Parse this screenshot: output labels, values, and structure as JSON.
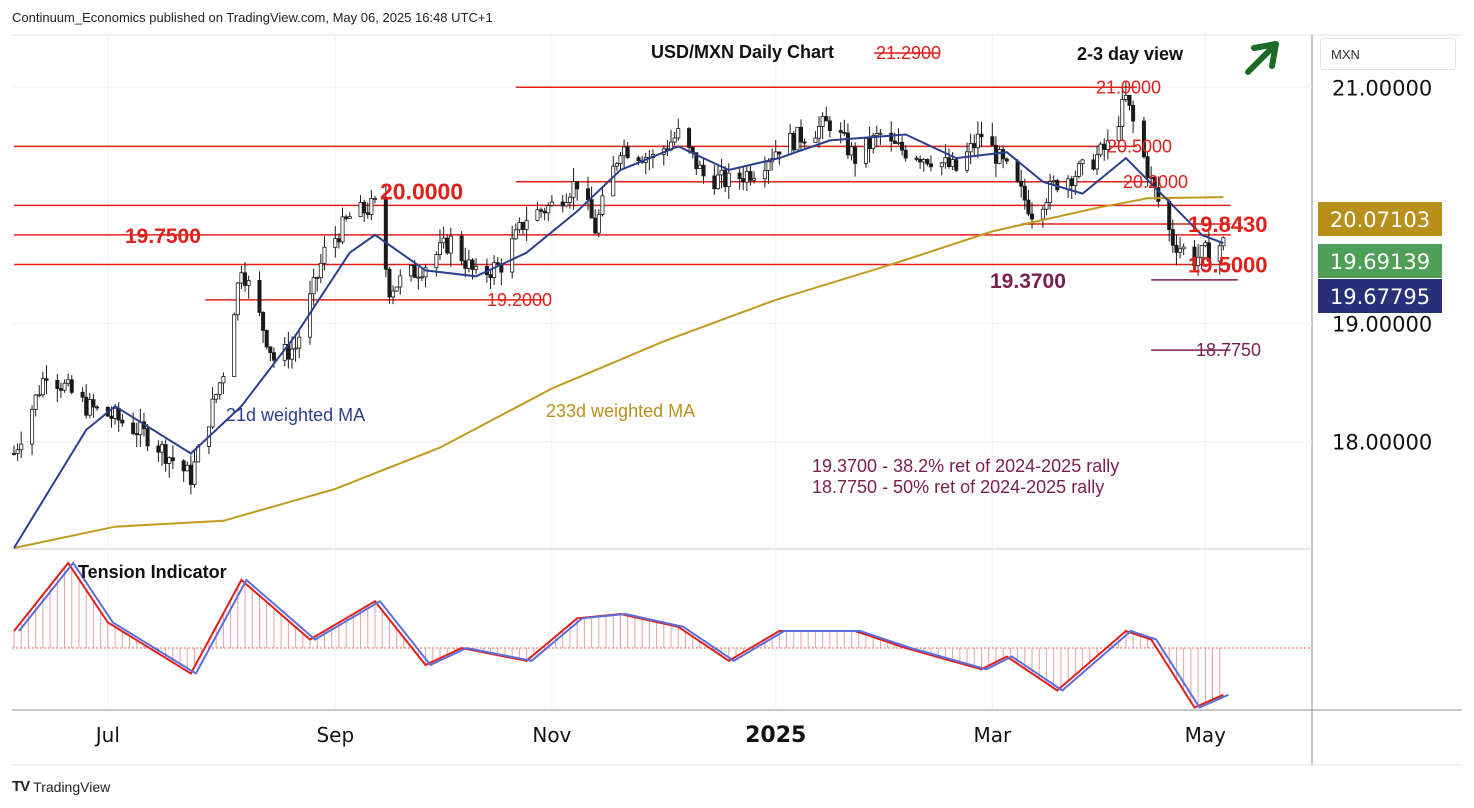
{
  "header": {
    "publisher_line": "Continuum_Economics published on TradingView.com, May 06, 2025 16:48 UTC+1"
  },
  "price_axis": {
    "unit": "MXN",
    "tick_labels": [
      "21.00000",
      "19.00000",
      "18.00000"
    ]
  },
  "badges": [
    {
      "label": "20.07103",
      "value": 20.07103,
      "color": "#b8901c"
    },
    {
      "label": "19.69139",
      "value": 19.69139,
      "color": "#4f9f59"
    },
    {
      "label": "19.67795",
      "value": 19.67795,
      "color": "#28307a"
    }
  ],
  "time_axis": {
    "labels": [
      "Jul",
      "Sep",
      "Nov",
      "2025",
      "Mar",
      "May"
    ]
  },
  "footer": {
    "brand": "TradingView",
    "logo_text": "TV"
  },
  "colors": {
    "up": "#1a1a1a",
    "down": "#1a1a1a",
    "level": "#e0201a",
    "fib": "#7b1e4f",
    "wma21": "#2b3f8f",
    "wma233": "#c19a1f",
    "tension_fill": "#e8a0a0",
    "tension_red": "#e0201a",
    "tension_blue": "#5a6ee0",
    "arrow": "#1e6b28"
  },
  "chart_data": [
    {
      "type": "candlestick",
      "title": "USD/MXN Daily Chart",
      "subtitle": "2-3 day view",
      "outlook_icon": "arrow-up-right-icon",
      "y_axis": {
        "scale": "linear",
        "range": [
          17.1,
          21.4
        ],
        "ticks": [
          21.0,
          19.0,
          18.0
        ]
      },
      "x_range": [
        "2024-06-05",
        "2025-05-30"
      ],
      "series_labels": [
        "21d weighted MA",
        "233d weighted MA"
      ],
      "levels": [
        {
          "label": "21.2900",
          "value": 21.29
        },
        {
          "label": "21.0000",
          "value": 21.0
        },
        {
          "label": "20.5000",
          "value": 20.5
        },
        {
          "label": "20.2000",
          "value": 20.2
        },
        {
          "label": "20.0000",
          "value": 20.0
        },
        {
          "label": "19.8430",
          "value": 19.843
        },
        {
          "label": "19.7500",
          "value": 19.75
        },
        {
          "label": "19.5000",
          "value": 19.5
        },
        {
          "label": "19.3700",
          "value": 19.37
        },
        {
          "label": "19.2000",
          "value": 19.2
        },
        {
          "label": "18.7750",
          "value": 18.775
        }
      ],
      "annotations": [
        "19.3700 - 38.2% ret of 2024-2025 rally",
        "18.7750 - 50% ret of 2024-2025 rally"
      ],
      "close_points": [
        [
          "2024-06-05",
          17.9
        ],
        [
          "2024-06-14",
          18.6
        ],
        [
          "2024-06-25",
          18.3
        ],
        [
          "2024-07-03",
          18.2
        ],
        [
          "2024-07-12",
          18.05
        ],
        [
          "2024-07-24",
          17.7
        ],
        [
          "2024-08-02",
          18.6
        ],
        [
          "2024-08-07",
          19.5
        ],
        [
          "2024-08-16",
          18.7
        ],
        [
          "2024-08-22",
          18.8
        ],
        [
          "2024-08-30",
          19.6
        ],
        [
          "2024-09-06",
          19.9
        ],
        [
          "2024-09-13",
          20.0
        ],
        [
          "2024-09-17",
          19.3
        ],
        [
          "2024-09-27",
          19.5
        ],
        [
          "2024-10-04",
          19.7
        ],
        [
          "2024-10-11",
          19.4
        ],
        [
          "2024-10-18",
          19.5
        ],
        [
          "2024-10-25",
          19.9
        ],
        [
          "2024-11-01",
          20.0
        ],
        [
          "2024-11-08",
          20.2
        ],
        [
          "2024-11-13",
          19.8
        ],
        [
          "2024-11-20",
          20.5
        ],
        [
          "2024-11-29",
          20.4
        ],
        [
          "2024-12-06",
          20.6
        ],
        [
          "2024-12-13",
          20.25
        ],
        [
          "2024-12-20",
          20.2
        ],
        [
          "2024-12-27",
          20.3
        ],
        [
          "2025-01-03",
          20.5
        ],
        [
          "2025-01-10",
          20.6
        ],
        [
          "2025-01-17",
          20.7
        ],
        [
          "2025-01-24",
          20.4
        ],
        [
          "2025-01-31",
          20.6
        ],
        [
          "2025-02-03",
          20.5
        ],
        [
          "2025-02-14",
          20.4
        ],
        [
          "2025-02-21",
          20.3
        ],
        [
          "2025-02-28",
          20.6
        ],
        [
          "2025-03-07",
          20.3
        ],
        [
          "2025-03-14",
          19.95
        ],
        [
          "2025-03-21",
          20.2
        ],
        [
          "2025-03-28",
          20.3
        ],
        [
          "2025-04-04",
          20.5
        ],
        [
          "2025-04-09",
          20.9
        ],
        [
          "2025-04-16",
          20.2
        ],
        [
          "2025-04-22",
          19.7
        ],
        [
          "2025-04-28",
          19.55
        ],
        [
          "2025-05-06",
          19.68
        ]
      ],
      "wma21_points": [
        [
          "2024-06-05",
          17.1
        ],
        [
          "2024-06-25",
          18.1
        ],
        [
          "2024-07-03",
          18.3
        ],
        [
          "2024-07-24",
          17.9
        ],
        [
          "2024-08-07",
          18.3
        ],
        [
          "2024-08-22",
          18.9
        ],
        [
          "2024-09-06",
          19.6
        ],
        [
          "2024-09-13",
          19.75
        ],
        [
          "2024-09-27",
          19.45
        ],
        [
          "2024-10-11",
          19.4
        ],
        [
          "2024-10-25",
          19.6
        ],
        [
          "2024-11-08",
          19.95
        ],
        [
          "2024-11-20",
          20.3
        ],
        [
          "2024-12-06",
          20.5
        ],
        [
          "2024-12-20",
          20.3
        ],
        [
          "2025-01-03",
          20.4
        ],
        [
          "2025-01-17",
          20.55
        ],
        [
          "2025-02-07",
          20.6
        ],
        [
          "2025-02-21",
          20.4
        ],
        [
          "2025-03-07",
          20.45
        ],
        [
          "2025-03-17",
          20.2
        ],
        [
          "2025-03-28",
          20.1
        ],
        [
          "2025-04-09",
          20.4
        ],
        [
          "2025-04-22",
          20.0
        ],
        [
          "2025-04-30",
          19.75
        ],
        [
          "2025-05-06",
          19.68
        ]
      ],
      "wma233_points": [
        [
          "2024-06-05",
          17.1
        ],
        [
          "2024-07-03",
          17.28
        ],
        [
          "2024-08-02",
          17.33
        ],
        [
          "2024-09-02",
          17.6
        ],
        [
          "2024-10-01",
          17.95
        ],
        [
          "2024-11-01",
          18.45
        ],
        [
          "2024-12-02",
          18.85
        ],
        [
          "2025-01-02",
          19.2
        ],
        [
          "2025-02-03",
          19.5
        ],
        [
          "2025-03-03",
          19.78
        ],
        [
          "2025-04-01",
          19.98
        ],
        [
          "2025-04-15",
          20.06
        ],
        [
          "2025-05-06",
          20.07
        ]
      ]
    },
    {
      "type": "line",
      "title": "Tension Indicator",
      "series": [
        {
          "values": [
            [
              "2024-06-05",
              0.2
            ],
            [
              "2024-06-20",
              1.0
            ],
            [
              "2024-07-01",
              0.3
            ],
            [
              "2024-07-24",
              -0.3
            ],
            [
              "2024-08-07",
              0.8
            ],
            [
              "2024-08-26",
              0.1
            ],
            [
              "2024-09-13",
              0.55
            ],
            [
              "2024-09-27",
              -0.2
            ],
            [
              "2024-10-07",
              0.0
            ],
            [
              "2024-10-25",
              -0.15
            ],
            [
              "2024-11-08",
              0.35
            ],
            [
              "2024-11-20",
              0.4
            ],
            [
              "2024-12-06",
              0.25
            ],
            [
              "2024-12-20",
              -0.15
            ],
            [
              "2025-01-03",
              0.2
            ],
            [
              "2025-01-24",
              0.2
            ],
            [
              "2025-02-07",
              0.0
            ],
            [
              "2025-02-28",
              -0.25
            ],
            [
              "2025-03-07",
              -0.1
            ],
            [
              "2025-03-21",
              -0.5
            ],
            [
              "2025-04-09",
              0.2
            ],
            [
              "2025-04-16",
              0.1
            ],
            [
              "2025-04-28",
              -0.7
            ],
            [
              "2025-05-06",
              -0.55
            ]
          ]
        }
      ]
    }
  ]
}
